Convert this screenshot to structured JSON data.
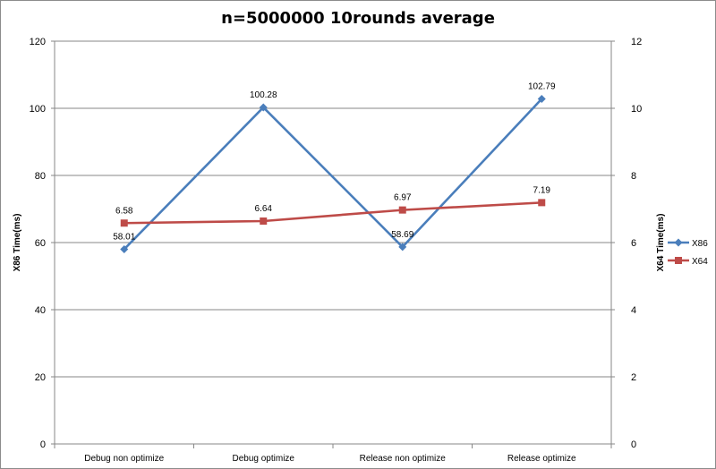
{
  "chart_data": {
    "type": "line",
    "title": "n=5000000 10rounds average",
    "categories": [
      "Debug non optimize",
      "Debug optimize",
      "Release non optimize",
      "Release optimize"
    ],
    "series": [
      {
        "name": "X86",
        "axis": "left",
        "values": [
          58.01,
          100.28,
          58.69,
          102.79
        ],
        "labels": [
          "58.01",
          "100.28",
          "58.69",
          "102.79"
        ],
        "color": "#4a7ebb",
        "marker": "diamond"
      },
      {
        "name": "X64",
        "axis": "right",
        "values": [
          6.58,
          6.64,
          6.97,
          7.19
        ],
        "labels": [
          "6.58",
          "6.64",
          "6.97",
          "7.19"
        ],
        "color": "#be4b48",
        "marker": "square"
      }
    ],
    "ylabel": "X86 Time(ms)",
    "ylim": [
      0,
      120
    ],
    "yticks": [
      "0",
      "20",
      "40",
      "60",
      "80",
      "100",
      "120"
    ],
    "y2label": "X64 Time(ms)",
    "y2lim": [
      0,
      12
    ],
    "y2ticks": [
      "0",
      "2",
      "4",
      "6",
      "8",
      "10",
      "12"
    ],
    "grid": true,
    "legend_position": "right"
  }
}
